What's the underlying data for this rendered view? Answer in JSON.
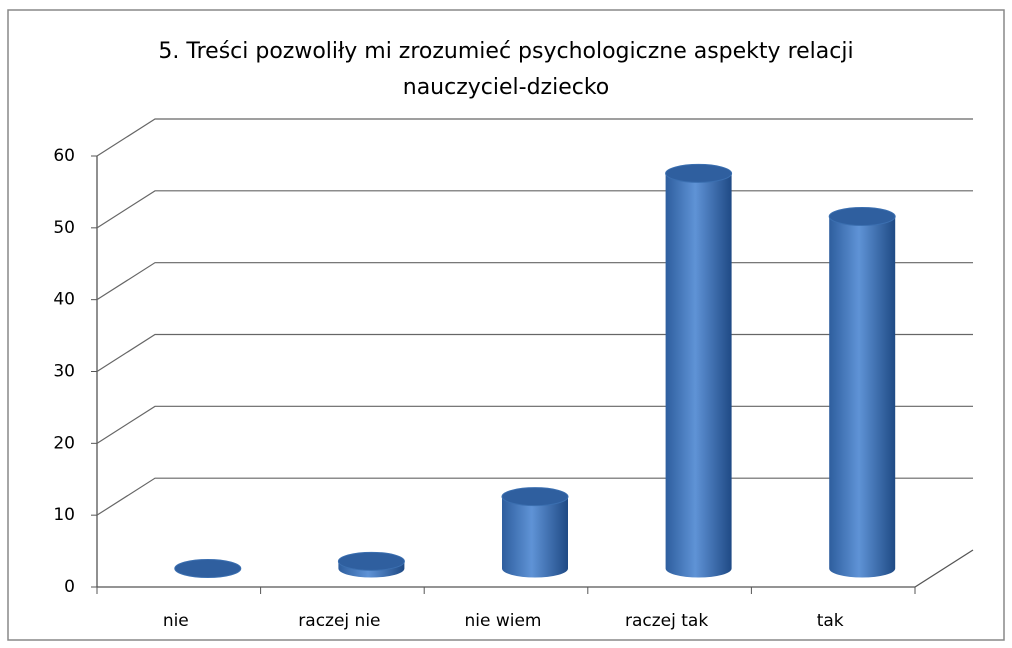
{
  "chart_data": {
    "type": "bar3d",
    "title": "5. Treści pozwoliły mi zrozumieć psychologiczne aspekty relacji nauczyciel-dziecko",
    "categories": [
      "nie",
      "raczej nie",
      "nie wiem",
      "raczej tak",
      "tak"
    ],
    "values": [
      0,
      1,
      10,
      55,
      49
    ],
    "color": "#4a7ebb",
    "ylim": [
      0,
      60
    ],
    "yticks": [
      0,
      10,
      20,
      30,
      40,
      50,
      60
    ],
    "grid": true
  }
}
